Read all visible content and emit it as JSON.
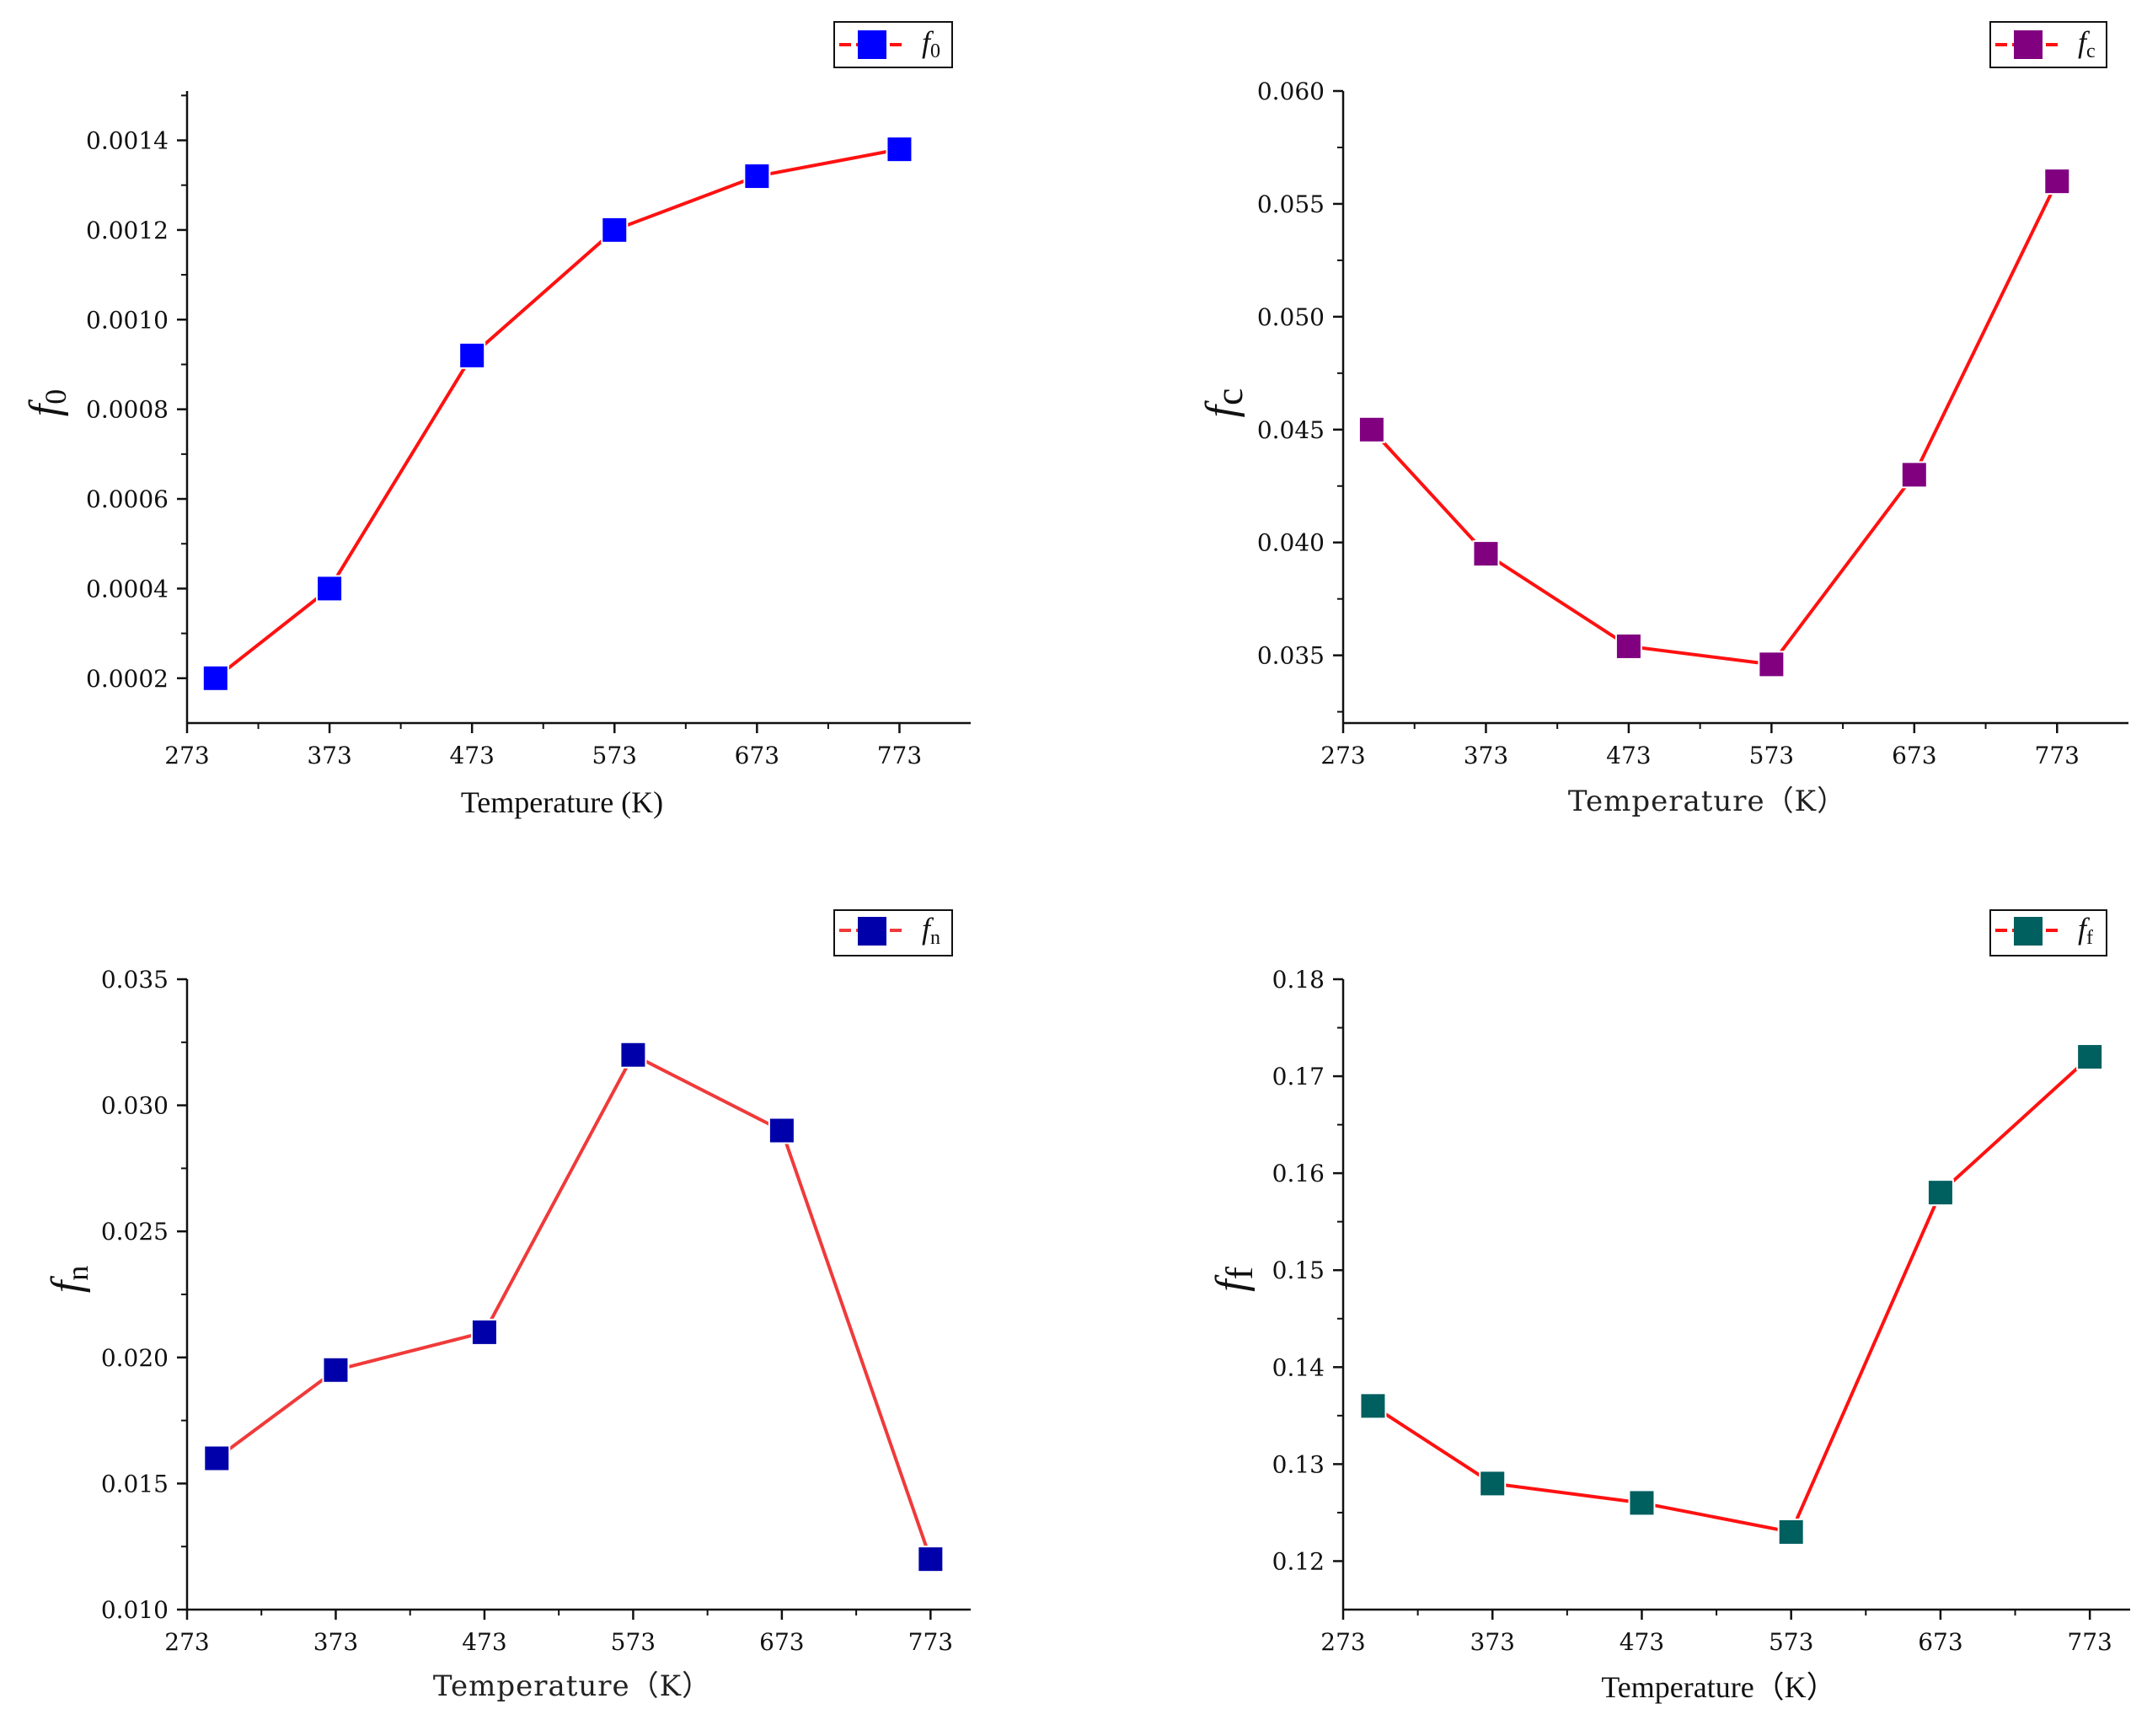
{
  "chart_data": [
    {
      "type": "line",
      "id": "f0",
      "categories": [
        273,
        373,
        473,
        573,
        673,
        773
      ],
      "x": [
        293,
        373,
        473,
        573,
        673,
        773
      ],
      "values": [
        0.0002,
        0.0004,
        0.00092,
        0.0012,
        0.00132,
        0.00138
      ],
      "xlim": [
        273,
        823
      ],
      "ylim": [
        0.0001,
        0.00151
      ],
      "yticks": [
        "0.0002",
        "0.0004",
        "0.0006",
        "0.0008",
        "0.0010",
        "0.0012",
        "0.0014"
      ],
      "xlabel": "Temperature (K)",
      "ylabel": "f",
      "ylabel_sub": "0",
      "legend": {
        "label": "f",
        "sub": "0",
        "position": "top-right"
      },
      "marker_color": "#0000ff",
      "line_color": "#ff1111",
      "grid": false
    },
    {
      "type": "line",
      "id": "fc",
      "categories": [
        273,
        373,
        473,
        573,
        673,
        773
      ],
      "x": [
        293,
        373,
        473,
        573,
        673,
        773
      ],
      "values": [
        0.045,
        0.0395,
        0.0354,
        0.0346,
        0.043,
        0.056
      ],
      "xlim": [
        273,
        823
      ],
      "ylim": [
        0.032,
        0.06
      ],
      "yticks": [
        "0.035",
        "0.040",
        "0.045",
        "0.050",
        "0.055",
        "0.060"
      ],
      "xlabel": "Temperature（K）",
      "ylabel": "f",
      "ylabel_sub": "c",
      "legend": {
        "label": "f",
        "sub": "c",
        "position": "top-right"
      },
      "marker_color": "#800080",
      "line_color": "#ff1111",
      "grid": false
    },
    {
      "type": "line",
      "id": "fn",
      "categories": [
        273,
        373,
        473,
        573,
        673,
        773
      ],
      "x": [
        293,
        373,
        473,
        573,
        673,
        773
      ],
      "values": [
        0.016,
        0.0195,
        0.021,
        0.032,
        0.029,
        0.012
      ],
      "xlim": [
        273,
        800
      ],
      "ylim": [
        0.01,
        0.035
      ],
      "yticks": [
        "0.010",
        "0.015",
        "0.020",
        "0.025",
        "0.030",
        "0.035"
      ],
      "xlabel": "Temperature（K）",
      "ylabel": "f",
      "ylabel_sub": "n",
      "legend": {
        "label": "f",
        "sub": "n",
        "position": "top-right"
      },
      "marker_color": "#0000aa",
      "line_color": "#f03a3a",
      "grid": false
    },
    {
      "type": "line",
      "id": "ff",
      "categories": [
        273,
        373,
        473,
        573,
        673,
        773
      ],
      "x": [
        293,
        373,
        473,
        573,
        673,
        773
      ],
      "values": [
        0.136,
        0.128,
        0.126,
        0.123,
        0.158,
        0.172
      ],
      "xlim": [
        273,
        800
      ],
      "ylim": [
        0.115,
        0.18
      ],
      "yticks": [
        "0.12",
        "0.13",
        "0.14",
        "0.15",
        "0.16",
        "0.17",
        "0.18"
      ],
      "xlabel": "Temperature（K）",
      "ylabel": "f",
      "ylabel_sub": "f",
      "legend": {
        "label": "f",
        "sub": "f",
        "position": "top-right"
      },
      "marker_color": "#005f5f",
      "line_color": "#ff1111",
      "grid": false
    }
  ]
}
